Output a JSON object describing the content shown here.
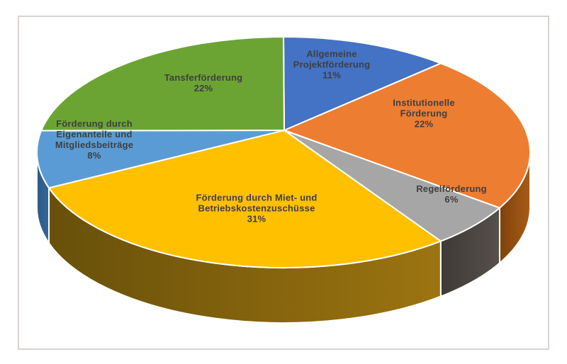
{
  "chart_data": {
    "type": "pie",
    "style": "3d",
    "title": "",
    "direction": "clockwise",
    "start_angle_deg": 0,
    "legend": "none",
    "label_color": "#3F3F3F",
    "background": "#FFFFFF",
    "frame_border_color": "#D9D3D0",
    "slices": [
      {
        "key": "allgemeine-projektfoerderung",
        "label": "Allgemeine Projektförderung",
        "value": 11,
        "pct_label": "11%",
        "label_lines": [
          "Allgemeine",
          "Projektförderung",
          "11%"
        ],
        "color": "#4472C4",
        "side_from": null,
        "side_to": null
      },
      {
        "key": "institutionelle-foerderung",
        "label": "Institutionelle Förderung",
        "value": 22,
        "pct_label": "22%",
        "label_lines": [
          "Institutionelle",
          "Förderung",
          "22%"
        ],
        "color": "#ED7D31",
        "side_from": "#7E420C",
        "side_to": "#A85C16"
      },
      {
        "key": "regelfoerderung",
        "label": "Regelförderung",
        "value": 6,
        "pct_label": "6%",
        "label_lines": [
          "Regelförderung",
          "6%"
        ],
        "color": "#A6A6A6",
        "side_from": "#3E3A37",
        "side_to": "#565049"
      },
      {
        "key": "foerderung-durch-miet-und-betriebskostenzuschuesse",
        "label": "Förderung durch Miet- und Betriebskostenzuschüsse",
        "value": 31,
        "pct_label": "31%",
        "label_lines": [
          "Förderung durch Miet- und",
          "Betriebskostenzuschüsse",
          "31%"
        ],
        "color": "#FFC000",
        "side_from": "#68500A",
        "side_to": "#9C7410"
      },
      {
        "key": "foerderung-durch-eigenanteile-und-mitgliedsbeitraege",
        "label": "Förderung durch Eigenanteile und Mitgliedsbeiträge",
        "value": 8,
        "pct_label": "8%",
        "label_lines": [
          "Förderung durch",
          "Eigenanteile und",
          "Mitgliedsbeiträge",
          "8%"
        ],
        "color": "#5B9BD5",
        "side_from": "#2C5A87",
        "side_to": "#33679B"
      },
      {
        "key": "tansferfoerderung",
        "label": "Tansferförderung",
        "value": 22,
        "pct_label": "22%",
        "label_lines": [
          "Tansferförderung",
          "22%"
        ],
        "color": "#6CA434",
        "side_from": null,
        "side_to": null
      }
    ]
  }
}
